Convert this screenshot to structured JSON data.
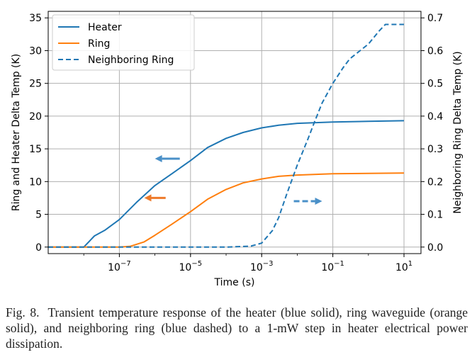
{
  "chart_data": {
    "type": "line",
    "xlabel": "Time (s)",
    "ylabel_left": "Ring and Heater Delta Temp (K)",
    "ylabel_right": "Neighboring Ring Delta Temp (K)",
    "x_scale": "log",
    "xlim": [
      1e-09,
      30
    ],
    "ylim_left": [
      -1,
      36
    ],
    "ylim_right": [
      -0.02,
      0.72
    ],
    "x_ticks": [
      {
        "value": 1e-07,
        "base": "10",
        "exp": "−7"
      },
      {
        "value": 1e-05,
        "base": "10",
        "exp": "−5"
      },
      {
        "value": 0.001,
        "base": "10",
        "exp": "−3"
      },
      {
        "value": 0.1,
        "base": "10",
        "exp": "−1"
      },
      {
        "value": 10,
        "base": "10",
        "exp": "1"
      }
    ],
    "y_ticks_left": [
      "0",
      "5",
      "10",
      "15",
      "20",
      "25",
      "30",
      "35"
    ],
    "y_ticks_right": [
      "0.0",
      "0.1",
      "0.2",
      "0.3",
      "0.4",
      "0.5",
      "0.6",
      "0.7"
    ],
    "grid": true,
    "legend_position": "top-left",
    "series": [
      {
        "name": "Heater",
        "axis": "left",
        "color": "#1f77b4",
        "style": "solid",
        "x": [
          1e-09,
          1e-08,
          2e-08,
          4e-08,
          1e-07,
          3e-07,
          1e-06,
          3e-06,
          1e-05,
          3e-05,
          0.0001,
          0.0003,
          0.001,
          0.003,
          0.01,
          0.1,
          1,
          10
        ],
        "y": [
          0,
          0,
          1.7,
          2.6,
          4.2,
          6.8,
          9.4,
          11.2,
          13.2,
          15.2,
          16.6,
          17.5,
          18.2,
          18.6,
          18.9,
          19.1,
          19.2,
          19.3
        ]
      },
      {
        "name": "Ring",
        "axis": "left",
        "color": "#ff7f0e",
        "style": "solid",
        "x": [
          1e-09,
          1e-07,
          2e-07,
          5e-07,
          1e-06,
          3e-06,
          1e-05,
          3e-05,
          0.0001,
          0.0003,
          0.001,
          0.003,
          0.01,
          0.1,
          1,
          10
        ],
        "y": [
          0,
          0,
          0.1,
          0.8,
          1.8,
          3.5,
          5.4,
          7.3,
          8.8,
          9.8,
          10.4,
          10.8,
          11.0,
          11.2,
          11.25,
          11.3
        ]
      },
      {
        "name": "Neighboring Ring",
        "axis": "right",
        "color": "#1f77b4",
        "style": "dashed",
        "x": [
          1e-09,
          0.0001,
          0.0005,
          0.001,
          0.002,
          0.003,
          0.005,
          0.01,
          0.02,
          0.03,
          0.05,
          0.1,
          0.2,
          0.3,
          1,
          2,
          3,
          10
        ],
        "y": [
          0,
          0,
          0.003,
          0.012,
          0.05,
          0.09,
          0.16,
          0.25,
          0.33,
          0.38,
          0.44,
          0.5,
          0.55,
          0.575,
          0.62,
          0.66,
          0.68,
          0.68
        ]
      }
    ],
    "annotation_arrows": [
      {
        "x_from": 5e-06,
        "x_to": 1e-06,
        "y": 13.5,
        "axis": "left",
        "color": "#4a90c8",
        "style": "solid"
      },
      {
        "x_from": 2e-06,
        "x_to": 5e-07,
        "y": 7.5,
        "axis": "left",
        "color": "#ee7a2a",
        "style": "solid"
      },
      {
        "x_from": 0.008,
        "x_to": 0.05,
        "y": 0.14,
        "axis": "right",
        "color": "#4a90c8",
        "style": "dashed"
      }
    ]
  },
  "caption": {
    "label": "Fig. 8.",
    "text": "Transient temperature response of the heater (blue solid), ring waveguide (orange solid), and neighboring ring (blue dashed) to a 1-mW step in heater electrical power dissipation."
  }
}
